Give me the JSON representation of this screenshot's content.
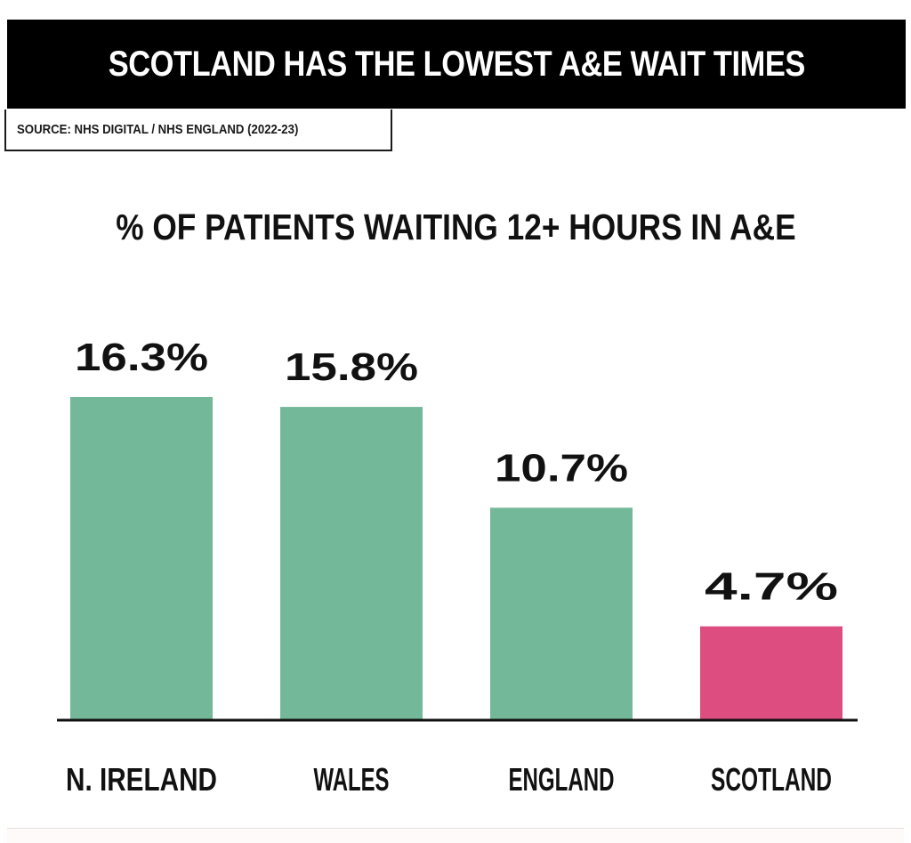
{
  "header": {
    "title": "SCOTLAND HAS THE LOWEST A&E WAIT TIMES",
    "source": "SOURCE: NHS DIGITAL / NHS ENGLAND (2022-23)"
  },
  "colors": {
    "default_bar": "#73b898",
    "highlight_bar": "#dd4d80",
    "axis": "#111111"
  },
  "chart_data": {
    "type": "bar",
    "title": "% OF PATIENTS WAITING 12+ HOURS IN A&E",
    "categories": [
      "N. IRELAND",
      "WALES",
      "ENGLAND",
      "SCOTLAND"
    ],
    "values": [
      16.3,
      15.8,
      10.7,
      4.7
    ],
    "value_labels": [
      "16.3%",
      "15.8%",
      "10.7%",
      "4.7%"
    ],
    "highlight_index": 3,
    "ylim": [
      0,
      16.3
    ],
    "grid": false,
    "legend": "none"
  }
}
